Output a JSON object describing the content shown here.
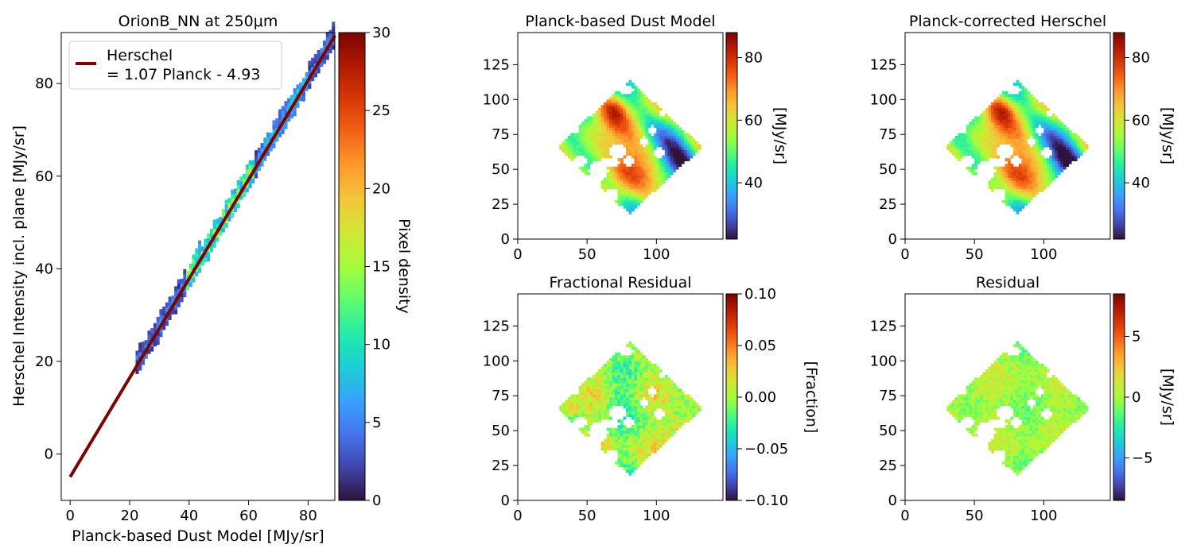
{
  "turbo_stops": [
    "#30123b",
    "#4145ab",
    "#4675ed",
    "#39a2fc",
    "#1bcfd4",
    "#24eca6",
    "#61fc6c",
    "#a4fc3b",
    "#d1e834",
    "#f3c63a",
    "#fe9b2d",
    "#f36315",
    "#d93806",
    "#b11901",
    "#7a0402"
  ],
  "chart_data": [
    {
      "id": "scatter",
      "type": "heatmap",
      "title": "OrionB_NN at 250μm",
      "xlabel": "Planck-based Dust Model [MJy/sr]",
      "ylabel": "Herschel Intensity incl. plane [MJy/sr]",
      "xlim": [
        -3,
        89
      ],
      "ylim": [
        -10,
        91
      ],
      "xticks": [
        0,
        20,
        40,
        60,
        80
      ],
      "yticks": [
        0,
        20,
        40,
        60,
        80
      ],
      "fit": {
        "slope": 1.07,
        "intercept": -4.93,
        "x_range": [
          0,
          89
        ],
        "color": "#7a0402"
      },
      "density_range": [
        22,
        89
      ],
      "legend": {
        "line1": "Herschel",
        "line2": "= 1.07 Planck - 4.93",
        "loc": "upper-left"
      },
      "colorbar": {
        "label": "Pixel density",
        "range": [
          0,
          30
        ],
        "ticks": [
          0,
          5,
          10,
          15,
          20,
          25,
          30
        ]
      }
    },
    {
      "id": "dust",
      "type": "heatmap",
      "title": "Planck-based Dust Model",
      "xlim": [
        0,
        148
      ],
      "ylim": [
        0,
        148
      ],
      "xticks": [
        0,
        50,
        100
      ],
      "yticks": [
        0,
        25,
        50,
        75,
        100,
        125
      ],
      "colorbar": {
        "label": "[MJy/sr]",
        "range": [
          22,
          88
        ],
        "ticks": [
          40,
          60,
          80
        ]
      }
    },
    {
      "id": "corrected",
      "type": "heatmap",
      "title": "Planck-corrected Herschel",
      "xlim": [
        0,
        148
      ],
      "ylim": [
        0,
        148
      ],
      "xticks": [
        0,
        50,
        100
      ],
      "yticks": [
        0,
        25,
        50,
        75,
        100,
        125
      ],
      "colorbar": {
        "label": "[MJy/sr]",
        "range": [
          22,
          88
        ],
        "ticks": [
          40,
          60,
          80
        ]
      }
    },
    {
      "id": "fracres",
      "type": "heatmap",
      "title": "Fractional Residual",
      "xlim": [
        0,
        148
      ],
      "ylim": [
        0,
        148
      ],
      "xticks": [
        0,
        50,
        100
      ],
      "yticks": [
        0,
        25,
        50,
        75,
        100,
        125
      ],
      "colorbar": {
        "label": "[Fraction]",
        "range": [
          -0.1,
          0.1
        ],
        "ticks": [
          -0.1,
          -0.05,
          0.0,
          0.05,
          0.1
        ],
        "tick_labels": [
          "−0.10",
          "−0.05",
          "0.00",
          "0.05",
          "0.10"
        ]
      }
    },
    {
      "id": "residual",
      "type": "heatmap",
      "title": "Residual",
      "xlim": [
        0,
        148
      ],
      "ylim": [
        0,
        148
      ],
      "xticks": [
        0,
        50,
        100
      ],
      "yticks": [
        0,
        25,
        50,
        75,
        100,
        125
      ],
      "colorbar": {
        "label": "[MJy/sr]",
        "range": [
          -8.5,
          8.5
        ],
        "ticks": [
          -5,
          0,
          5
        ],
        "tick_labels": [
          "−5",
          "0",
          "5"
        ]
      }
    }
  ],
  "map_shape": {
    "diamond": [
      [
        28,
        66
      ],
      [
        80,
        114
      ],
      [
        133,
        66
      ],
      [
        85,
        18
      ]
    ],
    "holes": [
      [
        78,
        107,
        5,
        4
      ],
      [
        40,
        78,
        5,
        3
      ],
      [
        45,
        56,
        6,
        4
      ],
      [
        58,
        49,
        7,
        7
      ],
      [
        50,
        42,
        5,
        5
      ],
      [
        72,
        63,
        6,
        5
      ],
      [
        80,
        56,
        4,
        4
      ],
      [
        66,
        55,
        7,
        4
      ],
      [
        91,
        70,
        4,
        3
      ],
      [
        102,
        62,
        4,
        4
      ],
      [
        97,
        78,
        4,
        3
      ],
      [
        68,
        32,
        5,
        5
      ],
      [
        44,
        34,
        3,
        3
      ],
      [
        58,
        38,
        3,
        4
      ],
      [
        104,
        90,
        3,
        2
      ]
    ]
  }
}
